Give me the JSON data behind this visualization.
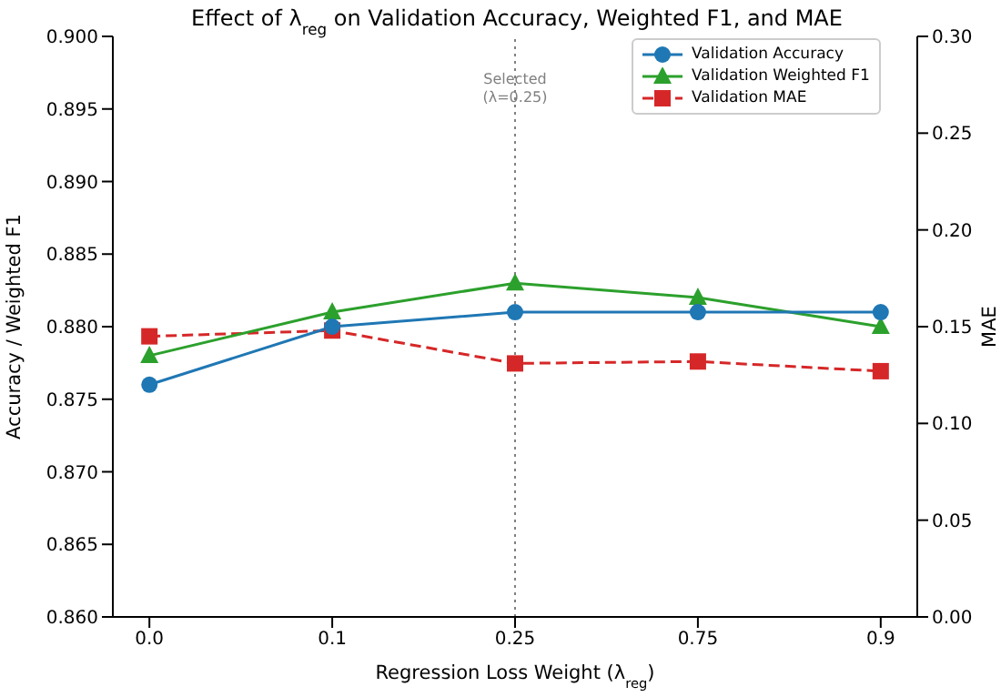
{
  "chart_data": {
    "type": "line",
    "title": "Effect of λ$_{reg}$ on Validation Accuracy, Weighted F1, and MAE",
    "xlabel": "Regression Loss Weight (λ$_{reg}$)",
    "ylabel": "Accuracy / Weighted F1",
    "y2label": "MAE",
    "categories": [
      "0.0",
      "0.1",
      "0.25",
      "0.75",
      "0.9"
    ],
    "series": [
      {
        "name": "Validation Accuracy",
        "color": "#1f77b4",
        "marker": "circle",
        "line_style": "solid",
        "values": [
          0.876,
          0.88,
          0.881,
          0.881,
          0.881
        ]
      },
      {
        "name": "Validation Weighted F1",
        "color": "#2ca02c",
        "marker": "triangle",
        "line_style": "solid",
        "values": [
          0.878,
          0.881,
          0.883,
          0.882,
          0.88
        ]
      },
      {
        "name": "Validation MAE",
        "color": "#d62728",
        "marker": "square",
        "line_style": "dashed",
        "axis": "y2",
        "values": [
          0.145,
          0.148,
          0.131,
          0.132,
          0.127
        ]
      }
    ],
    "ylim": [
      0.86,
      0.9
    ],
    "yticks": [
      {
        "value": 0.86,
        "label": "0.860"
      },
      0.865,
      {
        "value": 0.87,
        "label": "0.870"
      },
      0.875,
      {
        "value": 0.88,
        "label": "0.880"
      },
      0.885,
      {
        "value": 0.89,
        "label": "0.890"
      },
      0.895,
      {
        "value": 0.9,
        "label": "0.900"
      }
    ],
    "y2lim": [
      0,
      0.3
    ],
    "y2ticks": [
      {
        "value": 0,
        "label": "0.00"
      },
      0.05,
      {
        "value": 0.1,
        "label": "0.10"
      },
      0.15,
      {
        "value": 0.2,
        "label": "0.20"
      },
      0.25,
      {
        "value": 0.3,
        "label": "0.30"
      }
    ],
    "ref_lines": [
      {
        "axis": "x",
        "value": "0.25",
        "label": "Selected\n(λ=0.25)",
        "color": "#808080",
        "line_style": "dotted"
      }
    ],
    "grid": false,
    "legend": "top right"
  }
}
